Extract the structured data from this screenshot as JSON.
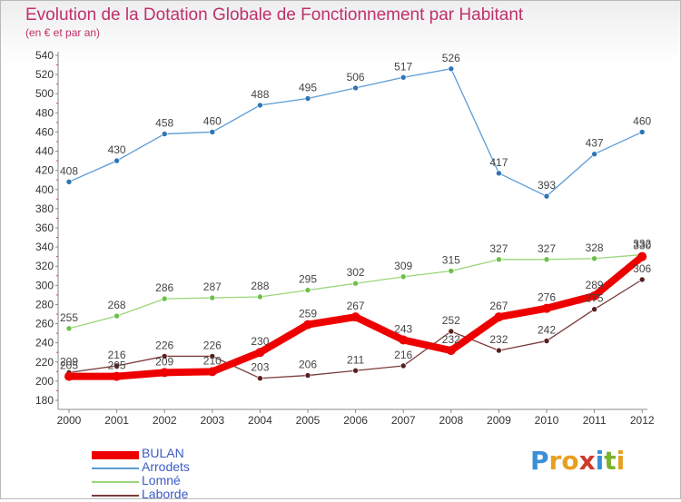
{
  "title": "Evolution de la Dotation Globale de Fonctionnement par Habitant",
  "subtitle": "(en € et par an)",
  "logo": {
    "letters": [
      "P",
      "r",
      "o",
      "x",
      "i",
      "t",
      "i"
    ],
    "colors": [
      "#3a8fd6",
      "#e8a020",
      "#e8a020",
      "#d03a2a",
      "#3a8fd6",
      "#7ab32e",
      "#e8a020"
    ]
  },
  "chart_data": {
    "type": "line",
    "x": [
      "2000",
      "2001",
      "2002",
      "2003",
      "2004",
      "2005",
      "2006",
      "2007",
      "2008",
      "2009",
      "2010",
      "2011",
      "2012"
    ],
    "ylim": [
      180,
      540
    ],
    "yticks": [
      180,
      200,
      220,
      240,
      260,
      280,
      300,
      320,
      340,
      360,
      380,
      400,
      420,
      440,
      460,
      480,
      500,
      520,
      540
    ],
    "grid": false,
    "legend_position": "bottom-left",
    "series": [
      {
        "name": "Arrodets",
        "color": "#5b9bd5",
        "point_color": "#2e75b6",
        "width": 1.3,
        "marker": 3,
        "values": [
          408,
          430,
          458,
          460,
          488,
          495,
          506,
          517,
          526,
          417,
          393,
          437,
          460
        ]
      },
      {
        "name": "Lomné",
        "color": "#9bd67a",
        "point_color": "#6cc04a",
        "width": 1.3,
        "marker": 3,
        "values": [
          255,
          268,
          286,
          287,
          288,
          295,
          302,
          309,
          315,
          327,
          327,
          328,
          332
        ]
      },
      {
        "name": "Laborde",
        "color": "#7a3b3b",
        "point_color": "#5a1e1e",
        "width": 1.3,
        "marker": 3,
        "values": [
          209,
          216,
          226,
          226,
          203,
          206,
          211,
          216,
          252,
          232,
          242,
          275,
          306
        ]
      },
      {
        "name": "BULAN",
        "color": "#ee0000",
        "point_color": "#ee0000",
        "width": 8,
        "marker": 5,
        "values": [
          205,
          205,
          209,
          210,
          230,
          259,
          267,
          243,
          232,
          267,
          276,
          289,
          330
        ]
      }
    ],
    "labels": [
      {
        "series": "Arrodets",
        "texts": [
          "408",
          "430",
          "458",
          "460",
          "488",
          "495",
          "506",
          "517",
          "526",
          "417",
          "393",
          "437",
          "460"
        ]
      },
      {
        "series": "Lomné",
        "texts": [
          "255",
          "268",
          "286",
          "287",
          "288",
          "295",
          "302",
          "309",
          "315",
          "327",
          "327",
          "328",
          "332"
        ]
      },
      {
        "series": "Laborde",
        "texts": [
          "209",
          "216",
          "226",
          "226",
          "203",
          "206",
          "211",
          "216",
          "252",
          "232",
          "242",
          "275",
          "306"
        ]
      },
      {
        "series": "BULAN",
        "texts": [
          "205",
          "205",
          "209",
          "210",
          "230",
          "259",
          "267",
          "243",
          "232",
          "267",
          "276",
          "289",
          "330"
        ]
      }
    ]
  },
  "legend": [
    {
      "name": "BULAN",
      "color": "#ee0000",
      "thickness": 9
    },
    {
      "name": "Arrodets",
      "color": "#5b9bd5",
      "thickness": 2
    },
    {
      "name": "Lomné",
      "color": "#9bd67a",
      "thickness": 2
    },
    {
      "name": "Laborde",
      "color": "#7a3b3b",
      "thickness": 2
    }
  ]
}
